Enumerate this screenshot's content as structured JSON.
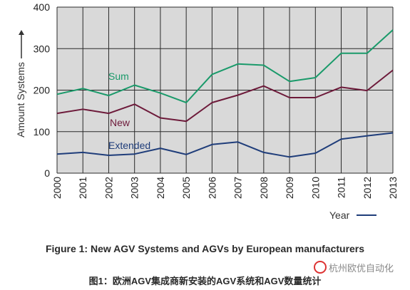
{
  "chart_data": {
    "type": "line",
    "x": [
      "2000",
      "2001",
      "2002",
      "2003",
      "2004",
      "2005",
      "2006",
      "2007",
      "2008",
      "2009",
      "2010",
      "2011",
      "2012",
      "2013"
    ],
    "series": [
      {
        "name": "Sum",
        "color": "#1a9a6a",
        "values": [
          190,
          204,
          187,
          212,
          193,
          170,
          238,
          263,
          260,
          221,
          230,
          289,
          289,
          345
        ]
      },
      {
        "name": "New",
        "color": "#6d1a3a",
        "values": [
          144,
          154,
          144,
          166,
          133,
          125,
          170,
          188,
          210,
          182,
          182,
          207,
          199,
          248
        ]
      },
      {
        "name": "Extended",
        "color": "#1f3d7a",
        "values": [
          46,
          50,
          43,
          46,
          60,
          45,
          69,
          75,
          50,
          39,
          48,
          82,
          90,
          97
        ]
      }
    ],
    "ylim": [
      0,
      400
    ],
    "yticks": [
      0,
      100,
      200,
      300,
      400
    ],
    "ylabel": "Amount Systems",
    "xlabel": "Year",
    "grid": true,
    "background": "#d9d9d9"
  },
  "caption": "Figure 1: New AGV Systems and AGVs by European manufacturers",
  "caption_cn": "图1：欧洲AGV集成商新安装的AGV系统和AGV数量统计",
  "watermark": "杭州欧优自动化"
}
